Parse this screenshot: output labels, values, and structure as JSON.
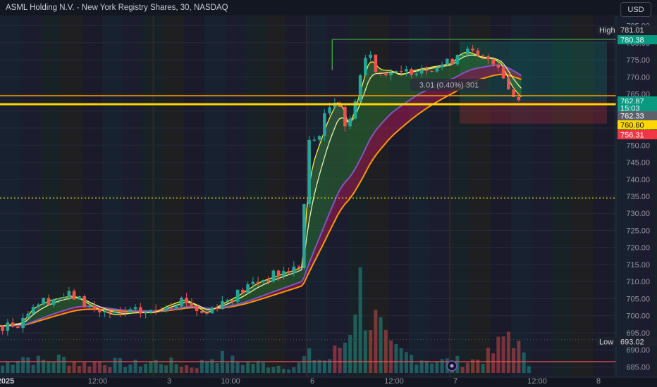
{
  "header": {
    "title": "ASML Holding N.V. - New York Registry Shares, 30, NASDAQ",
    "currency_button": "USD"
  },
  "colors": {
    "background": "#131722",
    "up": "#26a69a",
    "down": "#ef5350",
    "ema_fast": "#ffeb3b",
    "ema_mid": "#e8f5a0",
    "ema_slow_a": "#7e57c2",
    "ema_slow_b": "#ff9800",
    "level_line": "#ffd600",
    "dotted_level": "#e6e600",
    "range_line": "#4caf50"
  },
  "chart_data": {
    "type": "candlestick",
    "symbol": "ASML",
    "interval": "30",
    "exchange": "NASDAQ",
    "y_axis": {
      "min": 682,
      "max": 788,
      "ticks": [
        685,
        690,
        695,
        700,
        705,
        710,
        715,
        720,
        725,
        730,
        735,
        740,
        745,
        750,
        755,
        760,
        765,
        770,
        775,
        780,
        785
      ]
    },
    "x_axis": {
      "labels": [
        {
          "text": "2025",
          "slot": 0
        },
        {
          "text": "12:00",
          "slot": 9
        },
        {
          "text": "3",
          "slot": 16
        },
        {
          "text": "10:00",
          "slot": 22
        },
        {
          "text": "6",
          "slot": 30
        },
        {
          "text": "12:00",
          "slot": 38
        },
        {
          "text": "7",
          "slot": 44
        },
        {
          "text": "12:00",
          "slot": 52
        },
        {
          "text": "8",
          "slot": 58
        },
        {
          "text": "12:00",
          "slot": 67
        }
      ]
    },
    "session_separators": [
      15,
      30,
      44
    ],
    "price_path": [
      [
        0,
        697
      ],
      [
        2,
        698
      ],
      [
        3,
        703
      ],
      [
        5,
        705
      ],
      [
        7,
        706
      ],
      [
        9,
        702
      ],
      [
        11,
        700
      ],
      [
        13,
        701
      ],
      [
        15,
        701
      ],
      [
        16,
        703
      ],
      [
        18,
        705
      ],
      [
        20,
        700
      ],
      [
        21,
        703
      ],
      [
        23,
        706
      ],
      [
        25,
        710
      ],
      [
        27,
        712
      ],
      [
        29,
        714
      ],
      [
        29.5,
        715
      ],
      [
        30,
        750
      ],
      [
        31,
        752
      ],
      [
        32,
        760
      ],
      [
        33,
        765
      ],
      [
        34,
        753
      ],
      [
        35,
        768
      ],
      [
        36,
        778
      ],
      [
        37,
        771
      ],
      [
        38,
        772
      ],
      [
        39,
        770
      ],
      [
        40,
        772
      ],
      [
        42,
        773
      ],
      [
        44,
        774
      ],
      [
        45,
        778
      ],
      [
        46,
        777
      ],
      [
        47,
        775
      ],
      [
        48,
        775.5
      ],
      [
        49,
        773
      ],
      [
        49.5,
        768
      ],
      [
        50,
        765
      ],
      [
        51,
        762.8
      ]
    ],
    "volume_path": [
      [
        0,
        1
      ],
      [
        2,
        3
      ],
      [
        4,
        2
      ],
      [
        6,
        2.5
      ],
      [
        8,
        1.5
      ],
      [
        10,
        2
      ],
      [
        13,
        1.5
      ],
      [
        16,
        2
      ],
      [
        19,
        1
      ],
      [
        21,
        3
      ],
      [
        23,
        2
      ],
      [
        26,
        1.5
      ],
      [
        29,
        1
      ],
      [
        30,
        3
      ],
      [
        32,
        2
      ],
      [
        34,
        6
      ],
      [
        35,
        16
      ],
      [
        36,
        10
      ],
      [
        37,
        8
      ],
      [
        38,
        4
      ],
      [
        40,
        3
      ],
      [
        43,
        2
      ],
      [
        46,
        2
      ],
      [
        48,
        3
      ],
      [
        49,
        5
      ],
      [
        50,
        8
      ],
      [
        51,
        3
      ],
      [
        52,
        1
      ]
    ],
    "annotations": {
      "high": {
        "label": "High",
        "value": "781.01"
      },
      "low": {
        "label": "Low",
        "value": "693.02"
      },
      "last_price": "780.38",
      "level_1": "762.87",
      "countdown": "15:03",
      "level_2": "762.33",
      "level_3": "760.60",
      "level_4": "756.31",
      "measure_label": "3.01 (0.40%) 301",
      "dotted_level": 734.5,
      "upper_level_line": 764.5,
      "lower_level_line": 762.0
    },
    "long_position": {
      "entry": 762.9,
      "target": 780.38,
      "stop": 756.31
    }
  }
}
